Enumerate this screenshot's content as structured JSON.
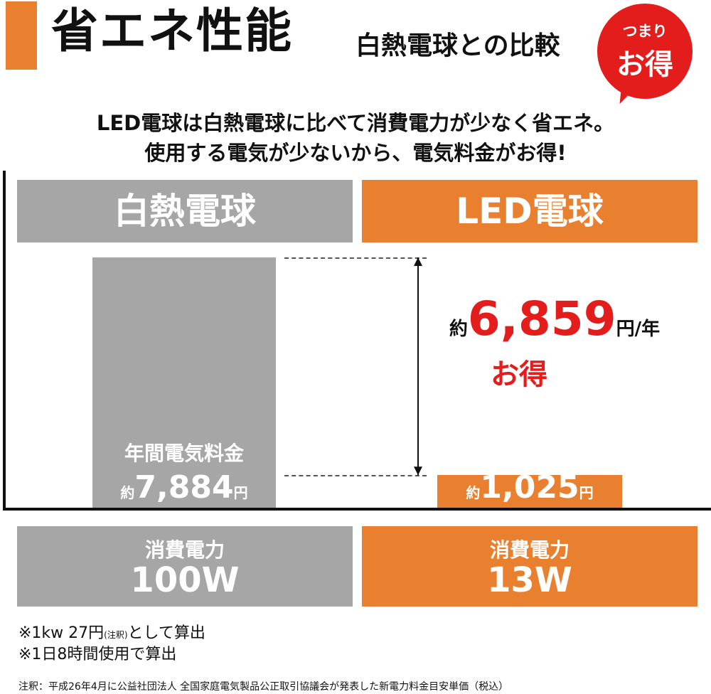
{
  "header": {
    "title": "省エネ性能",
    "subtitle": "白熱電球との比較",
    "bubble_small": "つまり",
    "bubble_big": "お得"
  },
  "intro": {
    "line1": "LED電球は白熱電球に比べて消費電力が少なく省エネ。",
    "line2": "使用する電気が少ないから、電気料金がお得!"
  },
  "columns": {
    "a": "白熱電球",
    "b": "LED電球"
  },
  "bar_label": "年間電気料金",
  "prefix": "約",
  "currency_unit": "円",
  "savings": {
    "prefix": "約",
    "amount": "6,859",
    "unit": "円/年",
    "word": "お得"
  },
  "power": {
    "label": "消費電力",
    "a_value": "100W",
    "b_value": "13W"
  },
  "notes": {
    "line1_main": "※1kw 27円",
    "line1_small": "(注釈)",
    "line1_tail": "として算出",
    "line2": "※1日8時間使用で算出",
    "footnote": "注釈：平成26年4月に公益社団法人 全国家庭電気製品公正取引協議会が発表した新電力料金目安単価（税込）"
  },
  "colors": {
    "accent": "#e98030",
    "gray": "#a6a6a6",
    "red": "#e31c1c"
  },
  "chart_data": {
    "type": "bar",
    "categories": [
      "白熱電球",
      "LED電球"
    ],
    "values": [
      7884,
      1025
    ],
    "value_labels": [
      "7,884",
      "1,025"
    ],
    "title": "",
    "xlabel": "",
    "ylabel": "",
    "ylim": [
      0,
      7884
    ],
    "grid": false
  }
}
